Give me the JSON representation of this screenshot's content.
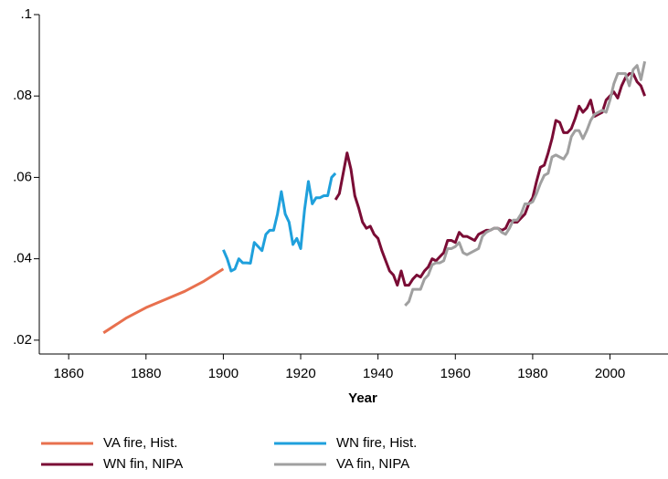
{
  "chart_data": {
    "type": "line",
    "x_label": "Year",
    "xlim": [
      1852.4,
      2015
    ],
    "ylim": [
      0.0166,
      0.1
    ],
    "xticks": [
      1860,
      1880,
      1900,
      1920,
      1940,
      1960,
      1980,
      2000
    ],
    "yticks": [
      {
        "value": 0.02,
        "label": ".02"
      },
      {
        "value": 0.04,
        "label": ".04"
      },
      {
        "value": 0.06,
        "label": ".06"
      },
      {
        "value": 0.08,
        "label": ".08"
      },
      {
        "value": 0.1,
        "label": ".1"
      }
    ],
    "series": [
      {
        "name": "VA fire, Hist.",
        "color": "#e8704e",
        "x": [
          1869,
          1875,
          1880,
          1885,
          1890,
          1895,
          1900
        ],
        "values": [
          0.0218,
          0.0255,
          0.028,
          0.03,
          0.032,
          0.0345,
          0.0375
        ]
      },
      {
        "name": "WN fire, Hist.",
        "color": "#1fa0dc",
        "x": [
          1900,
          1901,
          1902,
          1903,
          1904,
          1905,
          1906,
          1907,
          1908,
          1909,
          1910,
          1911,
          1912,
          1913,
          1914,
          1915,
          1916,
          1917,
          1918,
          1919,
          1920,
          1921,
          1922,
          1923,
          1924,
          1925,
          1926,
          1927,
          1928,
          1929
        ],
        "values": [
          0.0422,
          0.04,
          0.037,
          0.0375,
          0.04,
          0.039,
          0.039,
          0.0389,
          0.044,
          0.043,
          0.042,
          0.046,
          0.047,
          0.047,
          0.051,
          0.0565,
          0.051,
          0.049,
          0.0435,
          0.045,
          0.0425,
          0.052,
          0.059,
          0.0535,
          0.055,
          0.055,
          0.0555,
          0.0555,
          0.06,
          0.061
        ]
      },
      {
        "name": "WN fin, NIPA",
        "color": "#7a0c35",
        "x": [
          1929,
          1930,
          1931,
          1932,
          1933,
          1934,
          1935,
          1936,
          1937,
          1938,
          1939,
          1940,
          1941,
          1942,
          1943,
          1944,
          1945,
          1946,
          1947,
          1948,
          1949,
          1950,
          1951,
          1952,
          1953,
          1954,
          1955,
          1956,
          1957,
          1958,
          1959,
          1960,
          1961,
          1962,
          1963,
          1964,
          1965,
          1966,
          1967,
          1968,
          1969,
          1970,
          1971,
          1972,
          1973,
          1974,
          1975,
          1976,
          1977,
          1978,
          1979,
          1980,
          1981,
          1982,
          1983,
          1984,
          1985,
          1986,
          1987,
          1988,
          1989,
          1990,
          1991,
          1992,
          1993,
          1994,
          1995,
          1996,
          1997,
          1998,
          1999,
          2000,
          2001,
          2002,
          2003,
          2004,
          2005,
          2006,
          2007,
          2008,
          2009
        ],
        "values": [
          0.0545,
          0.056,
          0.061,
          0.066,
          0.062,
          0.0555,
          0.0525,
          0.049,
          0.0475,
          0.048,
          0.046,
          0.045,
          0.042,
          0.0395,
          0.037,
          0.036,
          0.0335,
          0.037,
          0.0335,
          0.0335,
          0.035,
          0.036,
          0.0355,
          0.037,
          0.038,
          0.04,
          0.0395,
          0.0405,
          0.0415,
          0.0445,
          0.0445,
          0.044,
          0.0465,
          0.0455,
          0.0455,
          0.045,
          0.0445,
          0.046,
          0.0465,
          0.047,
          0.047,
          0.0475,
          0.0475,
          0.047,
          0.0475,
          0.0495,
          0.049,
          0.049,
          0.05,
          0.051,
          0.0535,
          0.055,
          0.059,
          0.0625,
          0.063,
          0.066,
          0.0695,
          0.074,
          0.0735,
          0.071,
          0.071,
          0.072,
          0.0745,
          0.0775,
          0.076,
          0.077,
          0.079,
          0.075,
          0.0755,
          0.076,
          0.079,
          0.08,
          0.081,
          0.0795,
          0.0825,
          0.0845,
          0.0855,
          0.0855,
          0.0835,
          0.0825,
          0.08
        ]
      },
      {
        "name": "VA fin, NIPA",
        "color": "#a0a0a0",
        "x": [
          1947,
          1948,
          1949,
          1950,
          1951,
          1952,
          1953,
          1954,
          1955,
          1956,
          1957,
          1958,
          1959,
          1960,
          1961,
          1962,
          1963,
          1964,
          1965,
          1966,
          1967,
          1968,
          1969,
          1970,
          1971,
          1972,
          1973,
          1974,
          1975,
          1976,
          1977,
          1978,
          1979,
          1980,
          1981,
          1982,
          1983,
          1984,
          1985,
          1986,
          1987,
          1988,
          1989,
          1990,
          1991,
          1992,
          1993,
          1994,
          1995,
          1996,
          1997,
          1998,
          1999,
          2000,
          2001,
          2002,
          2003,
          2004,
          2005,
          2006,
          2007,
          2008,
          2009
        ],
        "values": [
          0.0285,
          0.0295,
          0.0325,
          0.0325,
          0.0325,
          0.035,
          0.036,
          0.0385,
          0.039,
          0.039,
          0.0395,
          0.0425,
          0.0425,
          0.043,
          0.044,
          0.0415,
          0.041,
          0.0415,
          0.042,
          0.0425,
          0.0455,
          0.0465,
          0.047,
          0.0475,
          0.0475,
          0.0465,
          0.046,
          0.0475,
          0.0495,
          0.0495,
          0.051,
          0.0535,
          0.0535,
          0.054,
          0.056,
          0.0585,
          0.0605,
          0.061,
          0.065,
          0.0655,
          0.065,
          0.0645,
          0.066,
          0.07,
          0.0715,
          0.0715,
          0.0695,
          0.0715,
          0.074,
          0.0755,
          0.076,
          0.0765,
          0.076,
          0.079,
          0.083,
          0.0855,
          0.0855,
          0.0855,
          0.0825,
          0.0865,
          0.0875,
          0.084,
          0.0885
        ]
      }
    ]
  }
}
